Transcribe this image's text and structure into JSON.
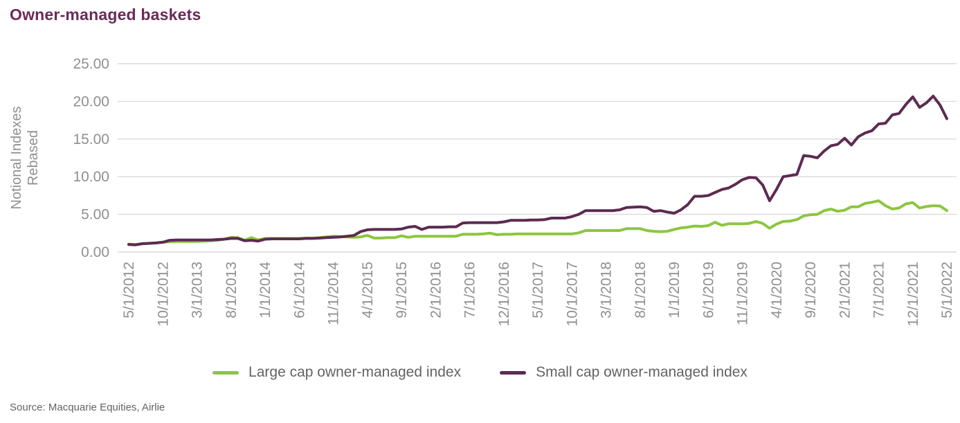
{
  "title": "Owner-managed baskets",
  "source_note": "Source: Macquarie Equities, Airlie",
  "colors": {
    "title": "#6b2a59",
    "large_cap": "#8cc63f",
    "small_cap": "#5c2a51",
    "grid": "#d9d9d9",
    "axis_text": "#8f8f8f",
    "legend_text": "#636363"
  },
  "legend": {
    "large_cap_label": "Large cap owner-managed index",
    "small_cap_label": "Small cap owner-managed index"
  },
  "chart_data": {
    "type": "line",
    "title": "Owner-managed baskets",
    "xlabel": "",
    "ylabel": "Notional Indexes Rebased",
    "ylabel_lines": [
      "Notional Indexes",
      "Rebased"
    ],
    "ylim": [
      0,
      25
    ],
    "yticks": [
      0,
      5,
      10,
      15,
      20,
      25
    ],
    "ytick_labels": [
      "0.00",
      "5.00",
      "10.00",
      "15.00",
      "20.00",
      "25.00"
    ],
    "grid": "horizontal",
    "legend_position": "bottom",
    "x_frequency": "monthly",
    "x_range": [
      "5/1/2012",
      "5/1/2022"
    ],
    "x_tick_every_n_months": 5,
    "x_tick_labels": [
      "5/1/2012",
      "10/1/2012",
      "3/1/2013",
      "8/1/2013",
      "1/1/2014",
      "6/1/2014",
      "11/1/2014",
      "4/1/2015",
      "9/1/2015",
      "2/1/2016",
      "7/1/2016",
      "12/1/2016",
      "5/1/2017",
      "10/1/2017",
      "3/1/2018",
      "8/1/2018",
      "1/1/2019",
      "6/1/2019",
      "11/1/2019",
      "4/1/2020",
      "9/1/2020",
      "2/1/2021",
      "7/1/2021",
      "12/1/2021",
      "5/1/2022"
    ],
    "series": [
      {
        "name": "Large cap owner-managed index",
        "color_key": "large_cap",
        "values": [
          1.05,
          1.0,
          1.1,
          1.15,
          1.2,
          1.3,
          1.35,
          1.4,
          1.4,
          1.4,
          1.4,
          1.45,
          1.5,
          1.55,
          1.7,
          1.95,
          1.9,
          1.55,
          1.9,
          1.6,
          1.8,
          1.8,
          1.8,
          1.8,
          1.8,
          1.8,
          1.85,
          1.85,
          1.9,
          2.0,
          2.1,
          2.05,
          2.0,
          1.95,
          2.0,
          2.2,
          1.85,
          1.85,
          1.9,
          1.9,
          2.15,
          1.95,
          2.1,
          2.1,
          2.1,
          2.1,
          2.1,
          2.1,
          2.1,
          2.35,
          2.35,
          2.35,
          2.4,
          2.5,
          2.3,
          2.35,
          2.35,
          2.4,
          2.4,
          2.4,
          2.4,
          2.4,
          2.4,
          2.4,
          2.4,
          2.4,
          2.55,
          2.85,
          2.85,
          2.85,
          2.85,
          2.85,
          2.85,
          3.1,
          3.1,
          3.1,
          2.85,
          2.75,
          2.7,
          2.75,
          3.0,
          3.2,
          3.3,
          3.45,
          3.4,
          3.5,
          3.95,
          3.55,
          3.75,
          3.75,
          3.75,
          3.8,
          4.05,
          3.8,
          3.15,
          3.7,
          4.05,
          4.1,
          4.3,
          4.8,
          4.95,
          5.0,
          5.5,
          5.7,
          5.4,
          5.55,
          6.0,
          6.0,
          6.45,
          6.6,
          6.8,
          6.15,
          5.7,
          5.85,
          6.4,
          6.55,
          5.85,
          6.05,
          6.15,
          6.1,
          5.5
        ]
      },
      {
        "name": "Small cap owner-managed index",
        "color_key": "small_cap",
        "values": [
          1.0,
          0.95,
          1.1,
          1.15,
          1.2,
          1.3,
          1.55,
          1.6,
          1.6,
          1.6,
          1.6,
          1.6,
          1.6,
          1.65,
          1.7,
          1.8,
          1.8,
          1.5,
          1.55,
          1.45,
          1.7,
          1.75,
          1.75,
          1.75,
          1.75,
          1.75,
          1.8,
          1.8,
          1.85,
          1.9,
          1.95,
          2.0,
          2.1,
          2.2,
          2.7,
          2.95,
          3.0,
          3.0,
          3.0,
          3.0,
          3.05,
          3.3,
          3.4,
          3.0,
          3.3,
          3.3,
          3.3,
          3.35,
          3.35,
          3.85,
          3.9,
          3.9,
          3.9,
          3.9,
          3.9,
          4.0,
          4.2,
          4.2,
          4.2,
          4.25,
          4.25,
          4.3,
          4.5,
          4.5,
          4.5,
          4.7,
          5.0,
          5.5,
          5.5,
          5.5,
          5.5,
          5.5,
          5.6,
          5.9,
          5.95,
          6.0,
          5.9,
          5.4,
          5.5,
          5.3,
          5.15,
          5.6,
          6.3,
          7.4,
          7.4,
          7.5,
          7.9,
          8.3,
          8.5,
          9.0,
          9.6,
          9.9,
          9.85,
          8.9,
          6.8,
          8.3,
          10.0,
          10.15,
          10.3,
          12.8,
          12.7,
          12.5,
          13.4,
          14.1,
          14.3,
          15.1,
          14.2,
          15.3,
          15.8,
          16.1,
          17.0,
          17.1,
          18.2,
          18.4,
          19.6,
          20.6,
          19.2,
          19.8,
          20.7,
          19.5,
          17.7
        ]
      }
    ]
  }
}
